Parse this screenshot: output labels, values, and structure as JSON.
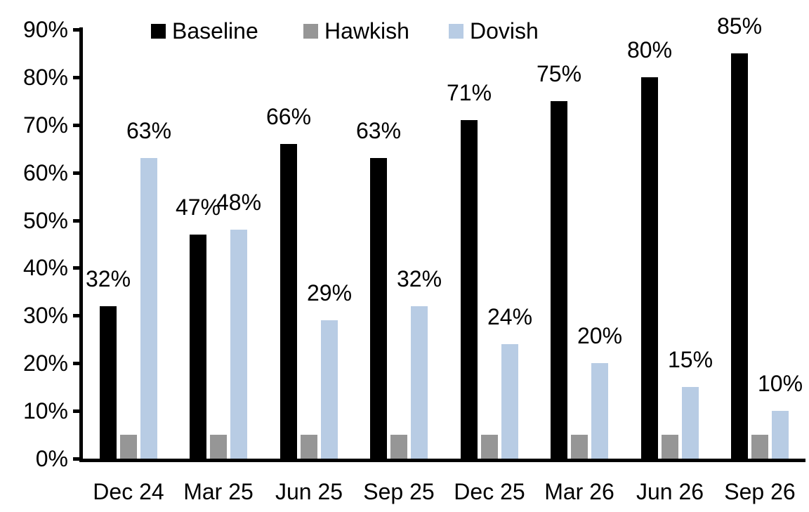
{
  "chart_data": {
    "type": "bar",
    "title": "",
    "xlabel": "",
    "ylabel": "",
    "categories": [
      "Dec 24",
      "Mar 25",
      "Jun 25",
      "Sep 25",
      "Dec 25",
      "Mar 26",
      "Jun 26",
      "Sep 26"
    ],
    "series": [
      {
        "name": "Baseline",
        "color": "#000000",
        "values": [
          32,
          47,
          66,
          63,
          71,
          75,
          80,
          85
        ],
        "labels": [
          "32%",
          "47%",
          "66%",
          "63%",
          "71%",
          "75%",
          "80%",
          "85%"
        ],
        "show_labels": true
      },
      {
        "name": "Hawkish",
        "color": "#969696",
        "values": [
          5,
          5,
          5,
          5,
          5,
          5,
          5,
          5
        ],
        "labels": [],
        "show_labels": false
      },
      {
        "name": "Dovish",
        "color": "#B8CCE4",
        "values": [
          63,
          48,
          29,
          32,
          24,
          20,
          15,
          10
        ],
        "labels": [
          "63%",
          "48%",
          "29%",
          "32%",
          "24%",
          "20%",
          "15%",
          "10%"
        ],
        "show_labels": true
      }
    ],
    "y_axis": {
      "min": 0,
      "max": 90,
      "step": 10,
      "tick_labels": [
        "0%",
        "10%",
        "20%",
        "30%",
        "40%",
        "50%",
        "60%",
        "70%",
        "80%",
        "90%"
      ]
    },
    "legend": {
      "position": "top",
      "entries": [
        "Baseline",
        "Hawkish",
        "Dovish"
      ]
    },
    "grid": false,
    "ylim": [
      0,
      90
    ]
  },
  "colors": {
    "background": "#FFFFFF",
    "axis": "#000000",
    "text": "#000000"
  }
}
